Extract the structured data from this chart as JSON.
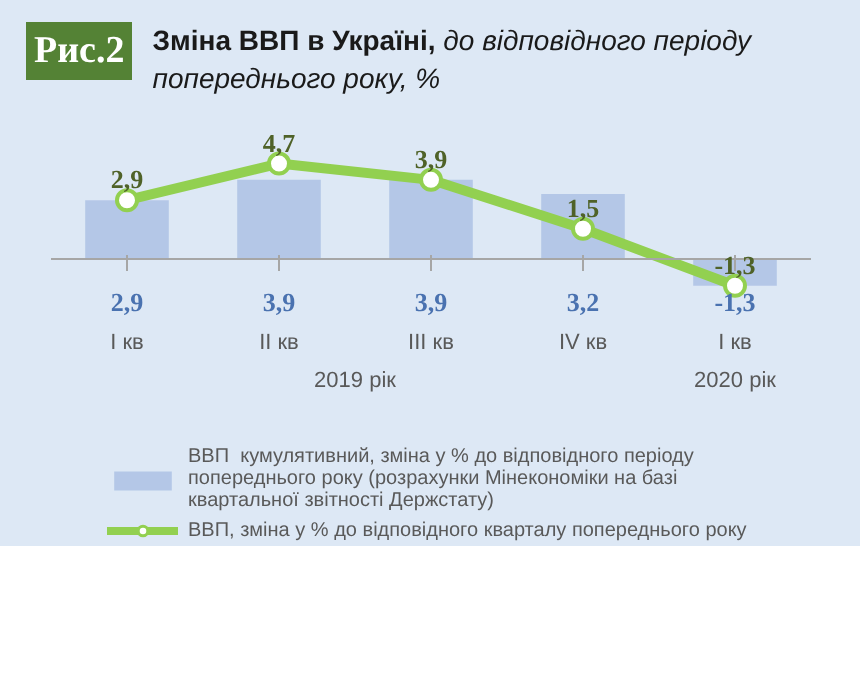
{
  "chart_data": {
    "type": "bar",
    "title": "Зміна ВВП в Україні,",
    "subtitle": "до відповідного періоду  попереднього року, %",
    "annotations": [
      "Рис.2",
      "2019 рік",
      "2020 рік"
    ],
    "categories": [
      "I кв",
      "II кв",
      "III кв",
      "IV кв",
      "I кв"
    ],
    "series": [
      {
        "name": "ВВП  кумулятивний, зміна у % до відповідного періоду попереднього року (розрахунки Мінекономіки на базі квартальної звітності Держстату)",
        "color": "#b4c7e7",
        "values": [
          2.9,
          3.9,
          3.9,
          3.2,
          -1.3
        ],
        "value_labels": [
          "2,9",
          "3,9",
          "3,9",
          "3,2",
          "-1,3"
        ]
      },
      {
        "name": "ВВП, зміна у % до відповідного кварталу попереднього року",
        "type": "line",
        "color": "#92d050",
        "marker": "circle",
        "values": [
          2.9,
          4.7,
          3.9,
          1.5,
          -1.3
        ],
        "value_labels": [
          "2,9",
          "4,7",
          "3,9",
          "1,5",
          "-1,3"
        ]
      }
    ],
    "tick_labels": "x",
    "legend": "bottom"
  }
}
